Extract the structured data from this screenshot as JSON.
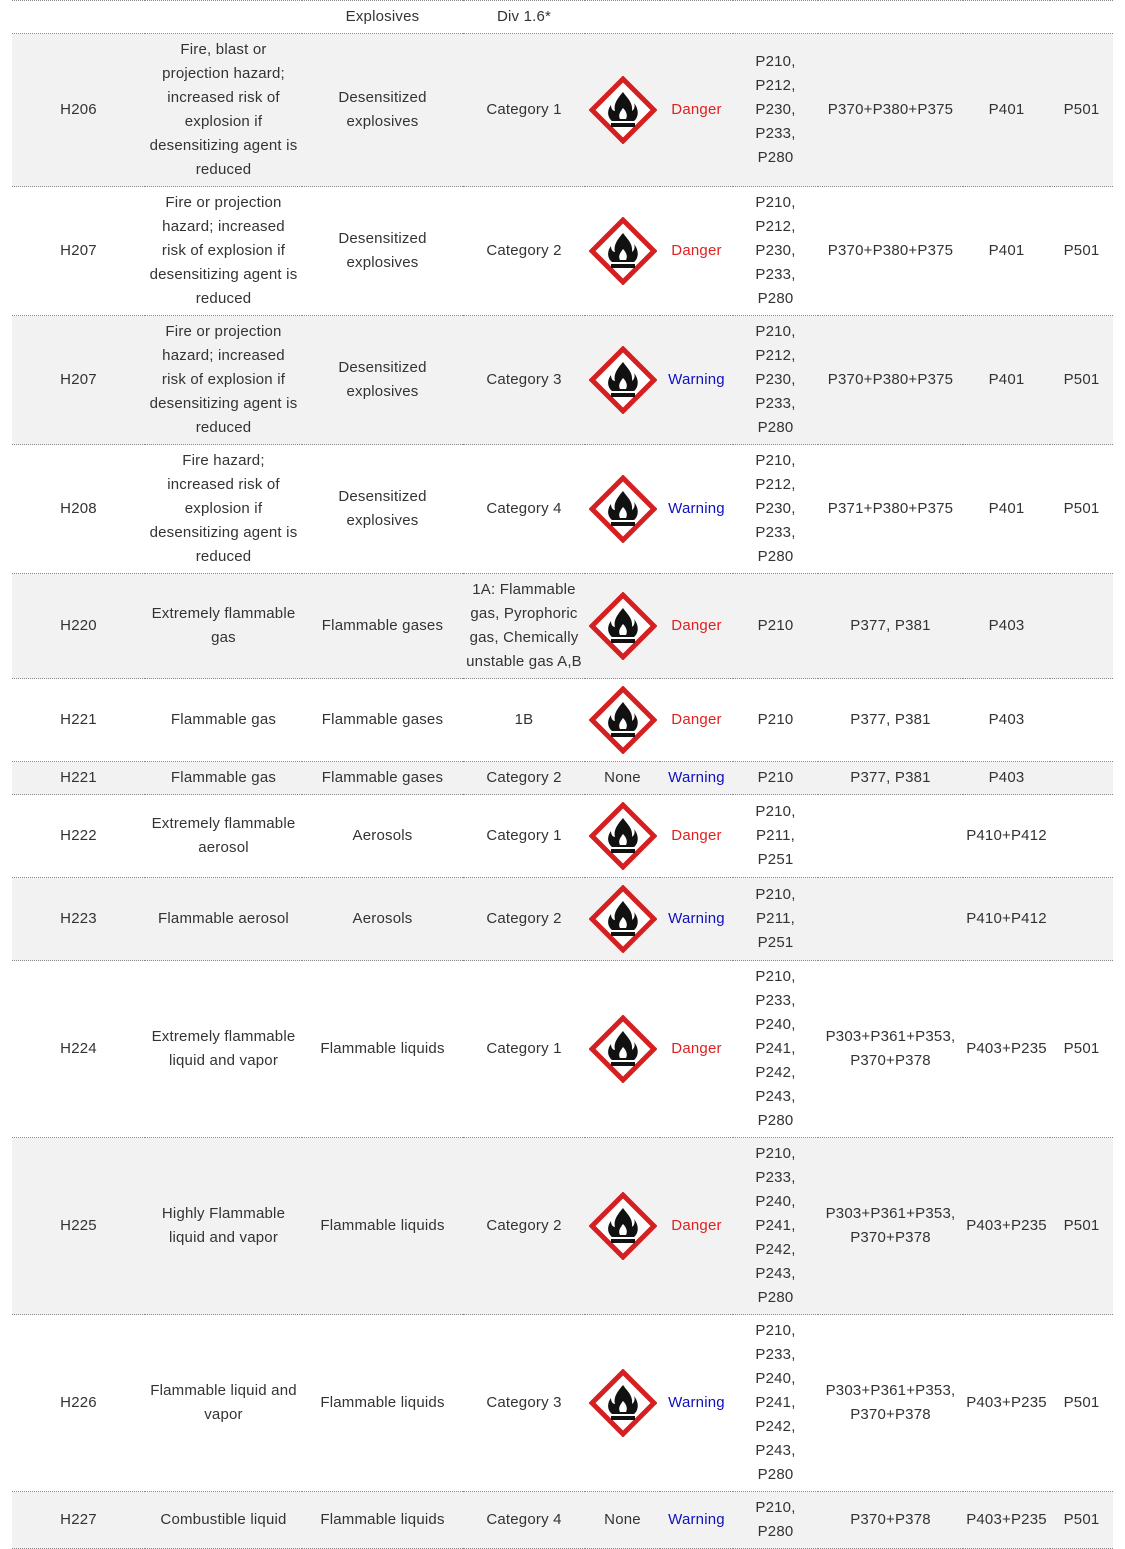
{
  "table": {
    "signal_colors": {
      "Danger": "#e02020",
      "Warning": "#1010c0"
    },
    "rows": [
      [
        null,
        null,
        "Explosives",
        "Div 1.6*"
      ],
      [
        "H206",
        "Fire, blast or projection hazard; increased risk of explosion if desensitizing agent is reduced",
        "Desensitized explosives",
        "Category 1",
        null,
        "Danger",
        "P210, P212, P230, P233, P280",
        "P370+P380+P375",
        "P401",
        "P501"
      ],
      [
        "H207",
        "Fire or projection hazard; increased risk of explosion if desensitizing agent is reduced",
        "Desensitized explosives",
        "Category 2",
        null,
        "Danger",
        "P210, P212, P230, P233, P280",
        "P370+P380+P375",
        "P401",
        "P501"
      ],
      [
        "H207",
        "Fire or projection hazard; increased risk of explosion if desensitizing agent is reduced",
        "Desensitized explosives",
        "Category 3",
        null,
        "Warning",
        "P210, P212, P230, P233, P280",
        "P370+P380+P375",
        "P401",
        "P501"
      ],
      [
        "H208",
        "Fire hazard; increased risk of explosion if desensitizing agent is reduced",
        "Desensitized explosives",
        "Category 4",
        null,
        "Warning",
        "P210, P212, P230, P233, P280",
        "P371+P380+P375",
        "P401",
        "P501"
      ],
      [
        "H220",
        "Extremely flammable gas",
        "Flammable gases",
        "1A: Flammable gas, Pyrophoric gas, Chemically unstable gas A,B",
        null,
        "Danger",
        "P210",
        "P377, P381",
        "P403"
      ],
      [
        "H221",
        "Flammable gas",
        "Flammable gases",
        "1B",
        null,
        "Danger",
        "P210",
        "P377, P381",
        "P403"
      ],
      [
        "H221",
        "Flammable gas",
        "Flammable gases",
        "Category 2",
        "None",
        "Warning",
        "P210",
        "P377, P381",
        "P403"
      ],
      [
        "H222",
        "Extremely flammable aerosol",
        "Aerosols",
        "Category 1",
        null,
        "Danger",
        "P210, P211, P251",
        null,
        "P410+P412"
      ],
      [
        "H223",
        "Flammable aerosol",
        "Aerosols",
        "Category 2",
        null,
        "Warning",
        "P210, P211, P251",
        null,
        "P410+P412"
      ],
      [
        "H224",
        "Extremely flammable liquid and vapor",
        "Flammable liquids",
        "Category 1",
        null,
        "Danger",
        "P210, P233, P240, P241, P242, P243, P280",
        "P303+P361+P353, P370+P378",
        "P403+P235",
        "P501"
      ],
      [
        "H225",
        "Highly Flammable liquid and vapor",
        "Flammable liquids",
        "Category 2",
        null,
        "Danger",
        "P210, P233, P240, P241, P242, P243, P280",
        "P303+P361+P353, P370+P378",
        "P403+P235",
        "P501"
      ],
      [
        "H226",
        "Flammable liquid and vapor",
        "Flammable liquids",
        "Category 3",
        null,
        "Warning",
        "P210, P233, P240, P241, P242, P243, P280",
        "P303+P361+P353, P370+P378",
        "P403+P235",
        "P501"
      ],
      [
        "H227",
        "Combustible liquid",
        "Flammable liquids",
        "Category 4",
        "None",
        "Warning",
        "P210, P280",
        "P370+P378",
        "P403+P235",
        "P501"
      ]
    ]
  }
}
